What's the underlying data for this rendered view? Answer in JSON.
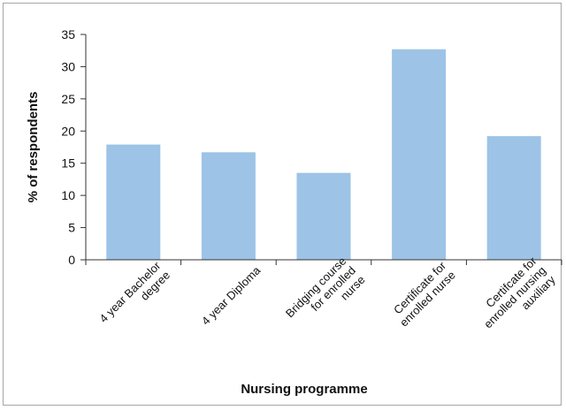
{
  "chart_data": {
    "type": "bar",
    "categories": [
      [
        "4 year Bachelor",
        "degree"
      ],
      [
        "4 year Diploma"
      ],
      [
        "Bridging course",
        "for enrolled",
        "nurse"
      ],
      [
        "Certificate for",
        "enrolled nurse"
      ],
      [
        "Certifcate for",
        "enrolled nursing",
        "auxiliary"
      ]
    ],
    "values": [
      17.9,
      16.7,
      13.5,
      32.7,
      19.2
    ],
    "xlabel": "Nursing programme",
    "ylabel": "% of respondents",
    "ylim": [
      0,
      35
    ],
    "yticks": [
      0,
      5,
      10,
      15,
      20,
      25,
      30,
      35
    ],
    "bar_color": "#9dc3e6",
    "grid": false,
    "legend": "none"
  }
}
